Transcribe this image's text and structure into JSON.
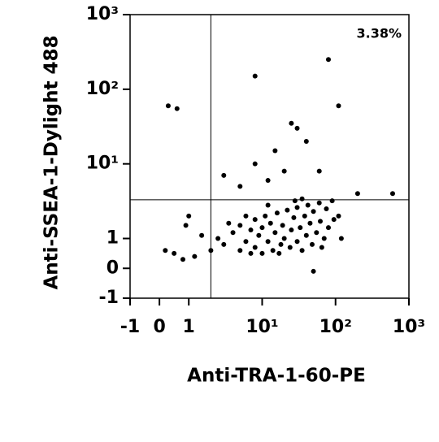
{
  "chart_data": {
    "type": "scatter",
    "xscale": "biexponential",
    "yscale": "biexponential",
    "xlabel": "Anti-TRA-1-60-PE",
    "ylabel": "Anti-SSEA-1-Dylight 488",
    "annotation": "3.38%",
    "color": "#000000",
    "xgate": 2,
    "ygate": 3.3,
    "xlim": [
      -1,
      1000
    ],
    "ylim": [
      -1,
      1000
    ],
    "xticks": [
      -1,
      0,
      1,
      {
        "value": 10,
        "label": "10¹"
      },
      {
        "value": 100,
        "label": "10²"
      },
      {
        "value": 1000,
        "label": "10³"
      }
    ],
    "yticks": [
      -1,
      0,
      1,
      {
        "value": 10,
        "label": "10¹"
      },
      {
        "value": 100,
        "label": "10²"
      },
      {
        "value": 1000,
        "label": "10³"
      }
    ],
    "x": [
      3,
      4,
      5,
      5,
      6,
      7,
      8,
      8,
      9,
      10,
      10,
      11,
      12,
      13,
      14,
      15,
      16,
      18,
      19,
      20,
      22,
      24,
      25,
      27,
      30,
      30,
      33,
      35,
      38,
      40,
      42,
      45,
      48,
      50,
      55,
      60,
      62,
      70,
      75,
      80,
      90,
      95,
      2.5,
      3.5,
      6,
      7,
      12,
      17,
      28,
      35,
      65,
      110,
      120,
      2,
      1.5,
      0.5,
      0.2,
      0.8,
      1.2,
      0.3,
      0.6,
      8,
      80,
      110,
      30,
      25,
      15,
      40,
      60,
      200,
      600,
      8,
      5,
      12,
      20,
      3,
      1,
      0.9,
      50
    ],
    "y": [
      0.8,
      1.2,
      0.6,
      1.5,
      0.9,
      1.3,
      0.7,
      1.8,
      1.1,
      0.5,
      1.4,
      2.0,
      0.9,
      1.6,
      0.6,
      1.2,
      2.2,
      0.8,
      1.5,
      1.0,
      2.4,
      0.7,
      1.3,
      1.9,
      0.9,
      2.6,
      1.4,
      0.6,
      2.0,
      1.1,
      2.8,
      1.6,
      0.8,
      2.3,
      1.2,
      3.0,
      1.7,
      1.0,
      2.5,
      1.4,
      3.2,
      1.8,
      1.0,
      1.6,
      2.0,
      0.5,
      2.8,
      0.5,
      3.2,
      3.4,
      0.7,
      2.0,
      1.0,
      0.6,
      1.1,
      0.5,
      0.6,
      0.3,
      0.4,
      60,
      55,
      150,
      250,
      60,
      30,
      35,
      15,
      20,
      8,
      4,
      4,
      10,
      5,
      6,
      8,
      7,
      2,
      1.5,
      -0.1
    ]
  }
}
